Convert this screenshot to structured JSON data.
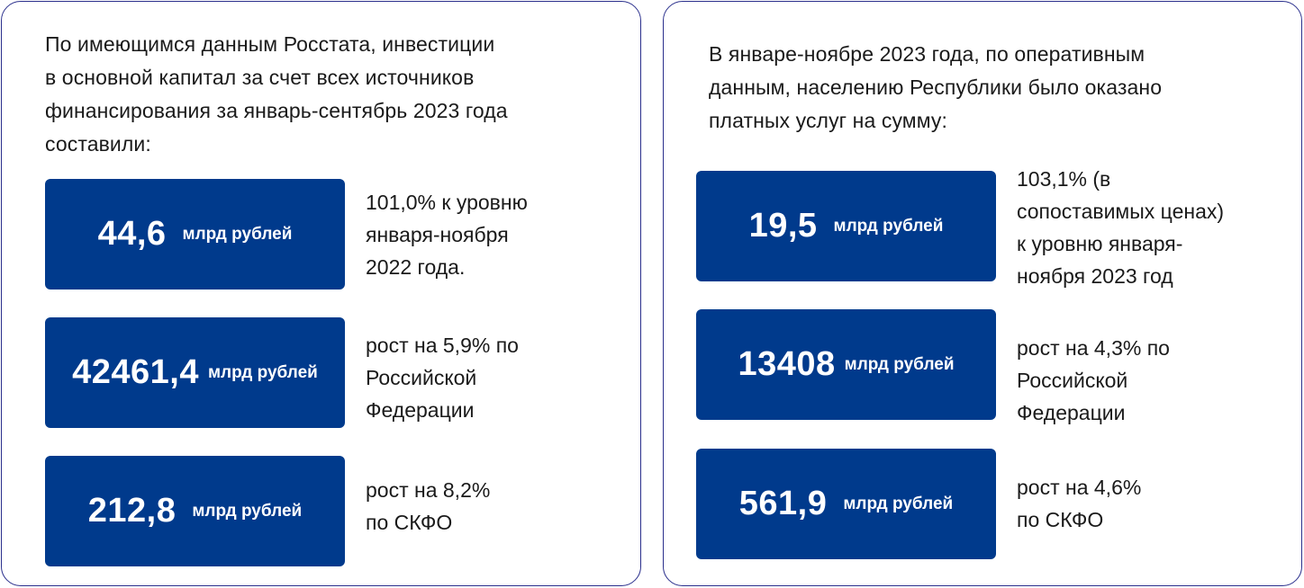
{
  "left": {
    "intro": "По имеющимся данным Росстата, инвестиции\nв основной капитал за счет всех источников\nфинансирования за январь-сентябрь 2023 года\nсоставили:",
    "cards": [
      {
        "value": "44,6",
        "unit": "млрд рублей",
        "note": " 101,0% к уровню\nянваря-ноября\n2022 года."
      },
      {
        "value": "42461,4",
        "unit": "млрд рублей",
        "note": "рост на 5,9%  по\nРоссийской\nФедерации"
      },
      {
        "value": "212,8",
        "unit": "млрд рублей",
        "note": "рост на 8,2%\nпо СКФО"
      }
    ]
  },
  "right": {
    "intro": "В январе-ноябре 2023 года, по оперативным\nданным, населению Республики было оказано\nплатных услуг на сумму:",
    "cards": [
      {
        "value": "19,5",
        "unit": "млрд рублей",
        "note": " 103,1% (в\nсопоставимых ценах)\nк уровню января-\nноября 2023 год"
      },
      {
        "value": "13408",
        "unit": "млрд рублей",
        "note": "рост на 4,3%  по\nРоссийской\nФедерации"
      },
      {
        "value": "561,9",
        "unit": "млрд рублей",
        "note": "рост на 4,6%\nпо СКФО"
      }
    ]
  },
  "colors": {
    "card_bg": "#003a8c",
    "border": "#2a2f8c",
    "card_text": "#ffffff"
  }
}
